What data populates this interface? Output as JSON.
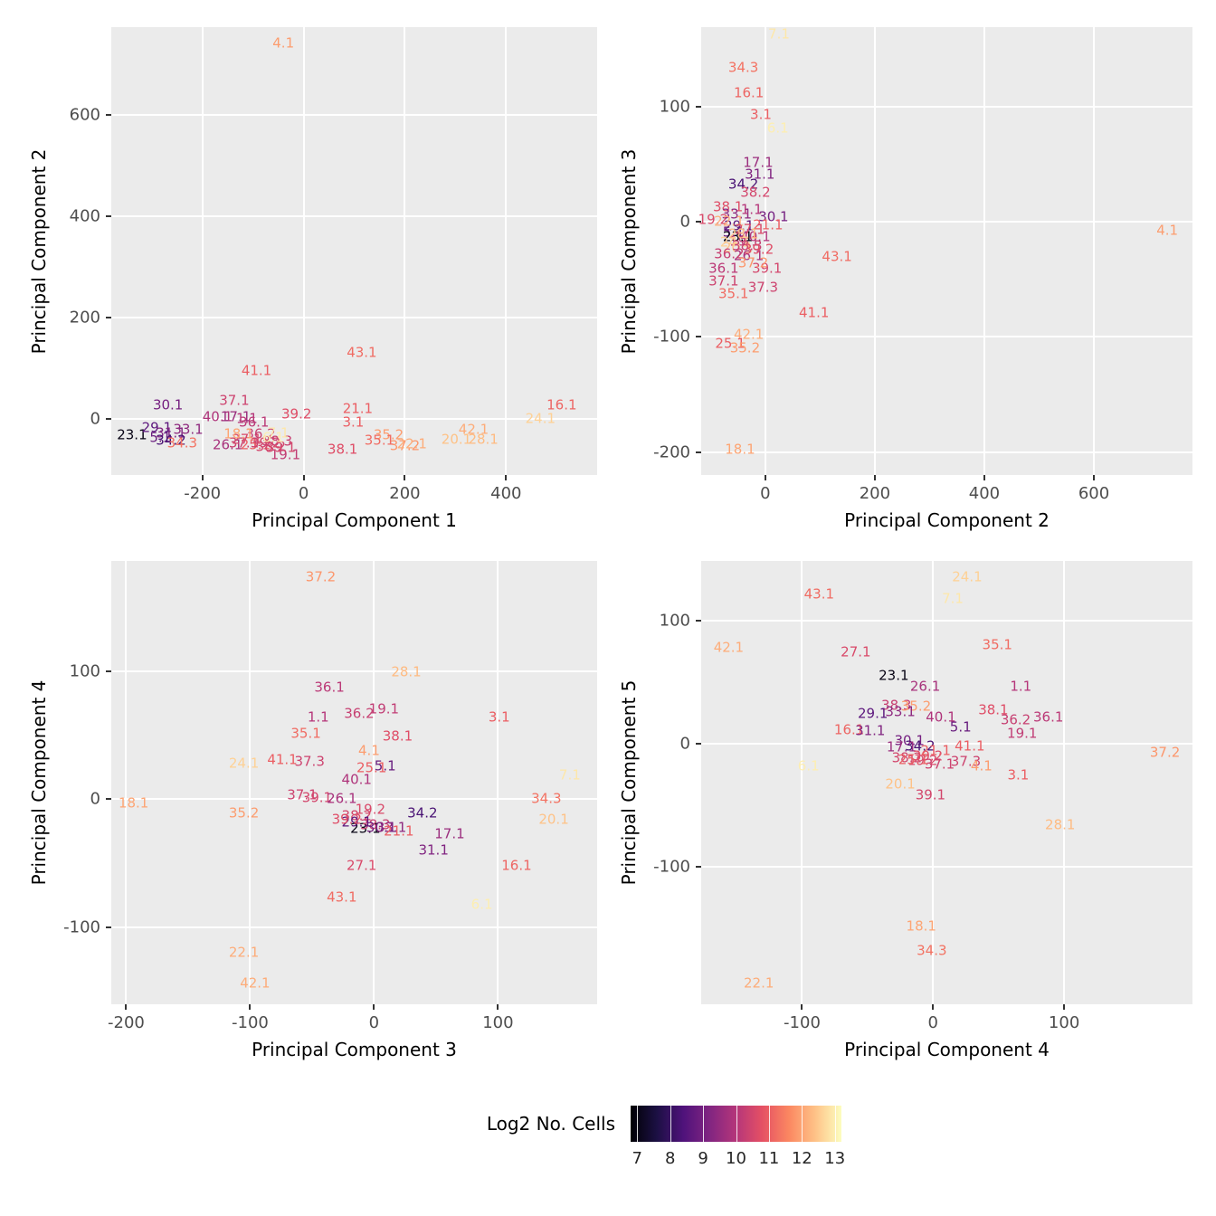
{
  "figure": {
    "background": "#ffffff",
    "panel_background": "#EBEBEB",
    "grid_color": "#ffffff",
    "tick_label_color": "#4d4d4d",
    "axis_title_color": "#000000"
  },
  "legend": {
    "title": "Log2 No. Cells",
    "ticks": [
      7,
      8,
      9,
      10,
      11,
      12,
      13
    ],
    "limits": [
      6.8,
      13.2
    ],
    "colormap": "magma",
    "position": "bottom"
  },
  "colormap_stops": [
    {
      "t": 0.0,
      "rgb": [
        0,
        0,
        4
      ]
    },
    {
      "t": 0.125,
      "rgb": [
        28,
        16,
        68
      ]
    },
    {
      "t": 0.25,
      "rgb": [
        79,
        18,
        123
      ]
    },
    {
      "t": 0.375,
      "rgb": [
        129,
        37,
        129
      ]
    },
    {
      "t": 0.5,
      "rgb": [
        181,
        54,
        122
      ]
    },
    {
      "t": 0.625,
      "rgb": [
        229,
        80,
        100
      ]
    },
    {
      "t": 0.75,
      "rgb": [
        251,
        135,
        97
      ]
    },
    {
      "t": 0.875,
      "rgb": [
        254,
        194,
        135
      ]
    },
    {
      "t": 1.0,
      "rgb": [
        252,
        253,
        191
      ]
    }
  ],
  "samples": {
    "1.1": 10.0,
    "3.1": 11.0,
    "4.1": 11.9,
    "5.1": 8.8,
    "6.1": 13.0,
    "7.1": 12.9,
    "16.1": 11.1,
    "17.1": 9.6,
    "18.1": 12.0,
    "19.1": 10.2,
    "19.2": 10.6,
    "20.1": 12.4,
    "21.1": 11.0,
    "22.1": 12.1,
    "23.1": 7.0,
    "24.1": 12.6,
    "25.1": 11.0,
    "26.1": 9.8,
    "27.1": 10.6,
    "28.1": 12.3,
    "29.1": 8.6,
    "30.1": 9.0,
    "31.1": 9.2,
    "33.1": 9.4,
    "34.2": 8.3,
    "34.3": 11.3,
    "35.1": 11.2,
    "35.2": 11.9,
    "36.1": 10.1,
    "36.2": 10.3,
    "37.1": 10.4,
    "37.2": 11.8,
    "37.3": 10.4,
    "38.1": 10.7,
    "38.2": 10.5,
    "38.3": 10.3,
    "39.1": 10.5,
    "39.2": 10.7,
    "40.1": 9.9,
    "41.1": 11.0,
    "42.1": 12.1,
    "43.1": 11.2
  },
  "chart_data": [
    {
      "type": "scatter",
      "marker": "text-label",
      "xlabel": "Principal Component 1",
      "ylabel": "Principal Component 2",
      "xlim": [
        -380,
        580
      ],
      "ylim": [
        -111,
        773
      ],
      "xticks": [
        -200,
        0,
        200,
        400
      ],
      "yticks": [
        0,
        200,
        400,
        600
      ],
      "grid": true,
      "points": [
        [
          "4.1",
          -40,
          740
        ],
        [
          "43.1",
          115,
          130
        ],
        [
          "41.1",
          -93,
          95
        ],
        [
          "30.1",
          -268,
          27
        ],
        [
          "37.1",
          -137,
          36
        ],
        [
          "21.1",
          107,
          20
        ],
        [
          "16.1",
          510,
          27
        ],
        [
          "24.1",
          468,
          0
        ],
        [
          "39.2",
          -14,
          9
        ],
        [
          "40.1",
          -170,
          4
        ],
        [
          "17.1",
          -134,
          4
        ],
        [
          "1.1",
          -112,
          0
        ],
        [
          "36.1",
          -98,
          -8
        ],
        [
          "3.1",
          98,
          -7
        ],
        [
          "42.1",
          336,
          -21
        ],
        [
          "35.2",
          168,
          -32
        ],
        [
          "35.1",
          150,
          -43
        ],
        [
          "37.2",
          200,
          -54
        ],
        [
          "20.1",
          302,
          -42
        ],
        [
          "28.1",
          355,
          -42
        ],
        [
          "22.1",
          214,
          -50
        ],
        [
          "38.1",
          77,
          -61
        ],
        [
          "19.1",
          -36,
          -71
        ],
        [
          "23.1",
          -339,
          -32
        ],
        [
          "29.1",
          -290,
          -18
        ],
        [
          "31.1",
          -262,
          -28
        ],
        [
          "5.1",
          -283,
          -38
        ],
        [
          "34.2",
          -262,
          -44
        ],
        [
          "34.3",
          -240,
          -48
        ],
        [
          "26.1",
          -150,
          -52
        ],
        [
          "33.1",
          -228,
          -22
        ],
        [
          "19.2",
          -75,
          -48
        ],
        [
          "25.1",
          -95,
          -52
        ],
        [
          "27.1",
          -112,
          -42
        ],
        [
          "36.2",
          -85,
          -30
        ],
        [
          "37.3",
          -118,
          -48
        ],
        [
          "38.2",
          -65,
          -55
        ],
        [
          "38.3",
          -52,
          -45
        ],
        [
          "39.1",
          -45,
          -58
        ],
        [
          "18.1",
          -128,
          -30
        ],
        [
          "6.1",
          -60,
          -38
        ],
        [
          "7.1",
          -50,
          -28
        ]
      ]
    },
    {
      "type": "scatter",
      "marker": "text-label",
      "xlabel": "Principal Component 2",
      "ylabel": "Principal Component 3",
      "xlim": [
        -117,
        780
      ],
      "ylim": [
        -220,
        169
      ],
      "xticks": [
        0,
        200,
        400,
        600
      ],
      "yticks": [
        -200,
        -100,
        0,
        100
      ],
      "grid": true,
      "points": [
        [
          "7.1",
          25,
          163
        ],
        [
          "34.3",
          -40,
          134
        ],
        [
          "16.1",
          -30,
          112
        ],
        [
          "3.1",
          -8,
          93
        ],
        [
          "6.1",
          23,
          81
        ],
        [
          "17.1",
          -13,
          51
        ],
        [
          "31.1",
          -10,
          41
        ],
        [
          "34.2",
          -40,
          32
        ],
        [
          "38.2",
          -18,
          25
        ],
        [
          "38.1",
          -68,
          13
        ],
        [
          "19.2",
          -95,
          2
        ],
        [
          "33.1",
          -52,
          6
        ],
        [
          "30.1",
          15,
          4
        ],
        [
          "1.1",
          -25,
          10
        ],
        [
          "21.1",
          5,
          -3
        ],
        [
          "29.1",
          -48,
          -4
        ],
        [
          "5.1",
          -58,
          -9
        ],
        [
          "22.1",
          -66,
          0
        ],
        [
          "23.1",
          -50,
          -13
        ],
        [
          "40.1",
          -18,
          -13
        ],
        [
          "27.1",
          -28,
          -7
        ],
        [
          "19.1",
          -38,
          -17
        ],
        [
          "28.1",
          -40,
          -11
        ],
        [
          "24.1",
          -55,
          -18
        ],
        [
          "20.1",
          -50,
          -23
        ],
        [
          "26.1",
          -30,
          -30
        ],
        [
          "36.2",
          -66,
          -28
        ],
        [
          "38.3",
          -33,
          -21
        ],
        [
          "39.2",
          -12,
          -24
        ],
        [
          "36.1",
          -76,
          -41
        ],
        [
          "39.1",
          3,
          -41
        ],
        [
          "37.1",
          -76,
          -52
        ],
        [
          "37.2",
          -22,
          -36
        ],
        [
          "35.1",
          -58,
          -63
        ],
        [
          "37.3",
          -4,
          -57
        ],
        [
          "41.1",
          89,
          -79
        ],
        [
          "43.1",
          131,
          -31
        ],
        [
          "42.1",
          -30,
          -98
        ],
        [
          "25.1",
          -64,
          -106
        ],
        [
          "35.2",
          -37,
          -110
        ],
        [
          "18.1",
          -46,
          -198
        ],
        [
          "4.1",
          734,
          -8
        ]
      ]
    },
    {
      "type": "scatter",
      "marker": "text-label",
      "xlabel": "Principal Component 3",
      "ylabel": "Principal Component 4",
      "xlim": [
        -212,
        180
      ],
      "ylim": [
        -160,
        186
      ],
      "xticks": [
        -200,
        -100,
        0,
        100
      ],
      "yticks": [
        -100,
        0,
        100
      ],
      "grid": true,
      "points": [
        [
          "37.2",
          -43,
          173
        ],
        [
          "28.1",
          26,
          99
        ],
        [
          "36.1",
          -36,
          87
        ],
        [
          "19.1",
          8,
          70
        ],
        [
          "36.2",
          -12,
          67
        ],
        [
          "1.1",
          -45,
          64
        ],
        [
          "3.1",
          101,
          64
        ],
        [
          "35.1",
          -55,
          51
        ],
        [
          "38.1",
          19,
          49
        ],
        [
          "4.1",
          -4,
          38
        ],
        [
          "41.1",
          -74,
          31
        ],
        [
          "37.3",
          -52,
          29
        ],
        [
          "24.1",
          -105,
          28
        ],
        [
          "25.1",
          -2,
          24
        ],
        [
          "5.1",
          9,
          26
        ],
        [
          "7.1",
          158,
          19
        ],
        [
          "40.1",
          -14,
          15
        ],
        [
          "37.1",
          -58,
          3
        ],
        [
          "39.1",
          -46,
          1
        ],
        [
          "26.1",
          -26,
          0
        ],
        [
          "18.1",
          -194,
          -3
        ],
        [
          "35.2",
          -105,
          -11
        ],
        [
          "19.2",
          -3,
          -8
        ],
        [
          "38.2",
          -14,
          -13
        ],
        [
          "34.2",
          39,
          -11
        ],
        [
          "34.3",
          139,
          0
        ],
        [
          "20.1",
          145,
          -16
        ],
        [
          "23.1",
          -7,
          -23
        ],
        [
          "38.3",
          1,
          -20
        ],
        [
          "29.1",
          -14,
          -18
        ],
        [
          "30.1",
          6,
          -22
        ],
        [
          "33.1",
          14,
          -22
        ],
        [
          "21.1",
          20,
          -25
        ],
        [
          "39.2",
          -22,
          -16
        ],
        [
          "17.1",
          61,
          -27
        ],
        [
          "31.1",
          48,
          -40
        ],
        [
          "16.1",
          115,
          -52
        ],
        [
          "27.1",
          -10,
          -52
        ],
        [
          "43.1",
          -26,
          -77
        ],
        [
          "6.1",
          87,
          -82
        ],
        [
          "22.1",
          -105,
          -120
        ],
        [
          "42.1",
          -96,
          -144
        ]
      ]
    },
    {
      "type": "scatter",
      "marker": "text-label",
      "xlabel": "Principal Component 4",
      "ylabel": "Principal Component 5",
      "xlim": [
        -177,
        198
      ],
      "ylim": [
        -211,
        148
      ],
      "xticks": [
        -100,
        0,
        100
      ],
      "yticks": [
        -100,
        0,
        100
      ],
      "grid": true,
      "points": [
        [
          "24.1",
          26,
          135
        ],
        [
          "43.1",
          -87,
          121
        ],
        [
          "7.1",
          15,
          117
        ],
        [
          "42.1",
          -156,
          78
        ],
        [
          "35.1",
          49,
          80
        ],
        [
          "27.1",
          -59,
          74
        ],
        [
          "23.1",
          -30,
          55
        ],
        [
          "26.1",
          -6,
          46
        ],
        [
          "1.1",
          67,
          46
        ],
        [
          "38.3",
          -28,
          31
        ],
        [
          "35.2",
          -13,
          30
        ],
        [
          "29.1",
          -46,
          24
        ],
        [
          "33.1",
          -25,
          26
        ],
        [
          "40.1",
          6,
          21
        ],
        [
          "38.1",
          46,
          27
        ],
        [
          "36.2",
          63,
          19
        ],
        [
          "36.1",
          88,
          21
        ],
        [
          "16.1",
          -64,
          11
        ],
        [
          "31.1",
          -48,
          10
        ],
        [
          "5.1",
          21,
          13
        ],
        [
          "19.1",
          68,
          8
        ],
        [
          "41.1",
          28,
          -2
        ],
        [
          "30.1",
          -18,
          2
        ],
        [
          "34.2",
          -10,
          -2
        ],
        [
          "17.1",
          -24,
          -3
        ],
        [
          "38.2",
          -20,
          -12
        ],
        [
          "19.2",
          -8,
          -14
        ],
        [
          "25.1",
          -15,
          -13
        ],
        [
          "39.2",
          -4,
          -10
        ],
        [
          "21.1",
          2,
          -6
        ],
        [
          "37.1",
          5,
          -17
        ],
        [
          "37.3",
          25,
          -15
        ],
        [
          "37.2",
          177,
          -7
        ],
        [
          "6.1",
          -95,
          -18
        ],
        [
          "4.1",
          37,
          -18
        ],
        [
          "3.1",
          65,
          -26
        ],
        [
          "20.1",
          -25,
          -33
        ],
        [
          "39.1",
          -2,
          -42
        ],
        [
          "28.1",
          97,
          -66
        ],
        [
          "18.1",
          -9,
          -148
        ],
        [
          "34.3",
          -1,
          -168
        ],
        [
          "22.1",
          -133,
          -194
        ]
      ]
    }
  ]
}
